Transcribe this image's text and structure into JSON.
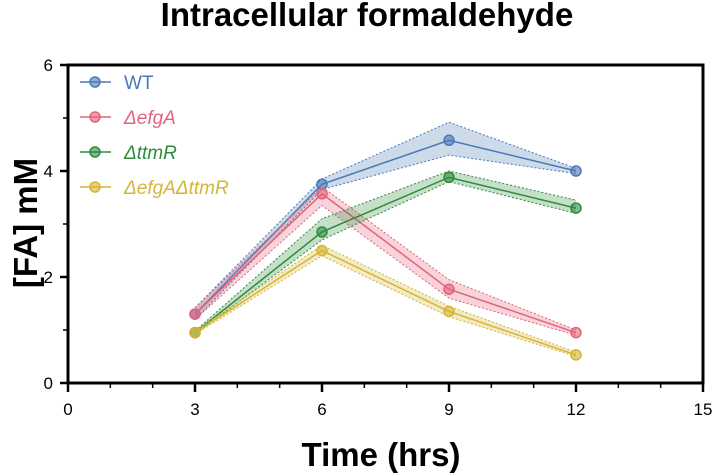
{
  "chart_data": {
    "type": "line",
    "title": "Intracellular formaldehyde",
    "xlabel": "Time (hrs)",
    "ylabel": "[FA] mM",
    "xlim": [
      0,
      15
    ],
    "ylim": [
      0,
      6
    ],
    "xticks": [
      "0",
      "3",
      "6",
      "9",
      "12",
      "15"
    ],
    "yticks": [
      "0",
      "2",
      "4",
      "6"
    ],
    "legend_position": "top-left",
    "x": [
      3,
      6,
      9,
      12
    ],
    "series": [
      {
        "name": "WT",
        "italic": false,
        "color": "#4a7ab5",
        "values": [
          1.3,
          3.75,
          4.58,
          4.0
        ],
        "lower": [
          1.2,
          3.65,
          4.3,
          3.95
        ],
        "upper": [
          1.42,
          3.85,
          4.92,
          4.05
        ]
      },
      {
        "name": "ΔefgA",
        "italic": true,
        "color": "#e4637a",
        "values": [
          1.3,
          3.57,
          1.77,
          0.95
        ],
        "lower": [
          1.2,
          3.35,
          1.6,
          0.9
        ],
        "upper": [
          1.42,
          3.7,
          1.95,
          1.0
        ]
      },
      {
        "name": "ΔttmR",
        "italic": true,
        "color": "#2e8b3d",
        "values": [
          0.95,
          2.85,
          3.88,
          3.3
        ],
        "lower": [
          0.92,
          2.7,
          3.8,
          3.2
        ],
        "upper": [
          0.98,
          3.1,
          4.0,
          3.45
        ]
      },
      {
        "name": "ΔefgAΔttmR",
        "italic": true,
        "color": "#d4b534",
        "values": [
          0.95,
          2.5,
          1.35,
          0.53
        ],
        "lower": [
          0.92,
          2.4,
          1.25,
          0.5
        ],
        "upper": [
          0.98,
          2.6,
          1.45,
          0.58
        ]
      }
    ]
  }
}
